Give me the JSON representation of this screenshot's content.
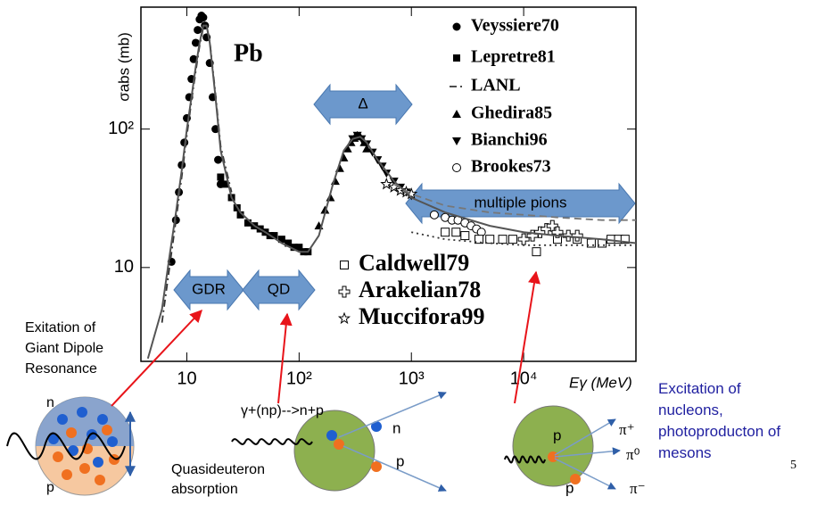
{
  "chart_data": {
    "type": "scatter",
    "xlabel": "Eγ (MeV)",
    "ylabel": "σabs (mb)",
    "xscale": "log",
    "yscale": "log",
    "xlim": [
      3.9,
      100000
    ],
    "ylim": [
      2.1,
      760
    ],
    "xticks": [
      10,
      {
        "value": 100,
        "label": "10²"
      },
      {
        "value": 1000,
        "label": "10³"
      },
      {
        "value": 10000,
        "label": "10⁴"
      }
    ],
    "yticks": [
      10,
      {
        "value": 100,
        "label": "10²"
      }
    ],
    "annotations": [
      "Pb",
      "GDR",
      "QD",
      "Δ",
      "multiple pions"
    ],
    "series": [
      {
        "name": "Veyssiere70",
        "style": "circle-filled",
        "color": "#000000",
        "x": [
          7.3,
          8,
          8.5,
          9,
          9.5,
          10,
          10.5,
          11,
          11.5,
          12,
          12.5,
          13,
          13.5,
          14,
          14.5,
          15,
          16,
          17,
          18,
          19,
          20
        ],
        "values": [
          11,
          22,
          35,
          55,
          80,
          120,
          170,
          230,
          320,
          420,
          520,
          620,
          660,
          640,
          560,
          460,
          300,
          170,
          100,
          60,
          40
        ]
      },
      {
        "name": "Lepretre81",
        "style": "square-filled",
        "color": "#000000",
        "x": [
          20,
          22,
          25,
          28,
          30,
          35,
          40,
          45,
          50,
          55,
          60,
          70,
          80,
          90,
          100,
          110,
          120
        ],
        "values": [
          45,
          40,
          32,
          27,
          24,
          21,
          20,
          19,
          18,
          17,
          17,
          16,
          15,
          14,
          14,
          13,
          13
        ]
      },
      {
        "name": "LANL",
        "style": "line-dash-dot",
        "color": "#333333",
        "x": [
          6,
          7,
          8,
          9,
          10,
          11,
          12,
          13,
          14,
          15,
          16,
          18,
          20,
          25
        ],
        "values": [
          4,
          10,
          22,
          45,
          90,
          160,
          260,
          400,
          540,
          560,
          430,
          180,
          75,
          35
        ]
      },
      {
        "name": "Ghedira85",
        "style": "triangle-up",
        "color": "#000000",
        "x": [
          150,
          170,
          190,
          210,
          230,
          250,
          270,
          290,
          310,
          330,
          350,
          380,
          400
        ],
        "values": [
          20,
          26,
          32,
          42,
          52,
          62,
          72,
          80,
          86,
          90,
          88,
          80,
          72
        ]
      },
      {
        "name": "Bianchi96",
        "style": "triangle-down",
        "color": "#000000",
        "x": [
          300,
          330,
          360,
          400,
          450,
          500,
          550,
          600,
          700,
          800,
          900,
          1000
        ],
        "values": [
          85,
          90,
          85,
          78,
          68,
          60,
          54,
          48,
          42,
          38,
          35,
          33
        ]
      },
      {
        "name": "Brookes73",
        "style": "circle-open",
        "color": "#000000",
        "x": [
          1600,
          2000,
          2300,
          2600,
          3000,
          3400,
          3800,
          4200
        ],
        "values": [
          24,
          23,
          22,
          22,
          21,
          20,
          19,
          18
        ]
      },
      {
        "name": "Caldwell79",
        "style": "square-open",
        "color": "#000000",
        "x": [
          2000,
          2500,
          3000,
          4000,
          5000,
          6500,
          8000,
          13000,
          20000,
          30000,
          40000,
          50000,
          60000,
          70000,
          80000
        ],
        "values": [
          18,
          18,
          17,
          16,
          16,
          16,
          16,
          13,
          16,
          16,
          15,
          15,
          16,
          16,
          16
        ]
      },
      {
        "name": "Arakelian78",
        "style": "plus-open",
        "color": "#000000",
        "x": [
          10000,
          12000,
          14000,
          16000,
          18000,
          20000,
          25000,
          30000
        ],
        "values": [
          16,
          17,
          18,
          19,
          20,
          18,
          17,
          17
        ]
      },
      {
        "name": "Muccifora99",
        "style": "star-open",
        "color": "#000000",
        "x": [
          600,
          700,
          800,
          900,
          1000
        ],
        "values": [
          40,
          38,
          36,
          35,
          34
        ]
      },
      {
        "style": "line-solid",
        "color": "#555555",
        "x": [
          4.5,
          6,
          7,
          8,
          9,
          10,
          11,
          12,
          13,
          14,
          15,
          16,
          18,
          20,
          25,
          30,
          40,
          50,
          70,
          100,
          120,
          150,
          200,
          250,
          300,
          350,
          400,
          500,
          700,
          1000,
          2000,
          5000,
          10000,
          20000,
          50000,
          100000
        ],
        "values": [
          2.2,
          5,
          12,
          25,
          50,
          100,
          170,
          280,
          420,
          560,
          560,
          420,
          170,
          70,
          32,
          25,
          20,
          18,
          15,
          13,
          13,
          17,
          40,
          70,
          85,
          88,
          80,
          60,
          42,
          32,
          25,
          20,
          18,
          17,
          16,
          15
        ]
      },
      {
        "style": "line-dashed",
        "color": "#777777",
        "x": [
          700,
          1000,
          2000,
          5000,
          10000,
          20000,
          50000,
          100000
        ],
        "values": [
          40,
          34,
          28,
          25,
          24,
          23,
          22,
          22
        ]
      },
      {
        "style": "line-dotted",
        "color": "#333333",
        "x": [
          1000,
          2000,
          5000,
          10000,
          20000,
          50000,
          100000
        ],
        "values": [
          18,
          16,
          15,
          14.5,
          14.5,
          14.5,
          14.5
        ]
      }
    ]
  },
  "slide": {
    "gdr_caption": [
      "Exitation of",
      "Giant Dipole",
      "Resonance"
    ],
    "gdr_n": "n",
    "gdr_p": "p",
    "qd_reaction": "γ+(np)-->n+p",
    "qd_n": "n",
    "qd_p": "p",
    "qd_caption": [
      "Quasideuteron",
      "absorption"
    ],
    "pion_p1": "p",
    "pion_p2": "p",
    "pion_plus": "π⁺",
    "pion_zero": "π⁰",
    "pion_minus": "π⁻",
    "nucleon_caption": [
      "Excitation of",
      "nucleons,",
      "photoproducton of",
      "mesons"
    ],
    "page_number": "5"
  }
}
